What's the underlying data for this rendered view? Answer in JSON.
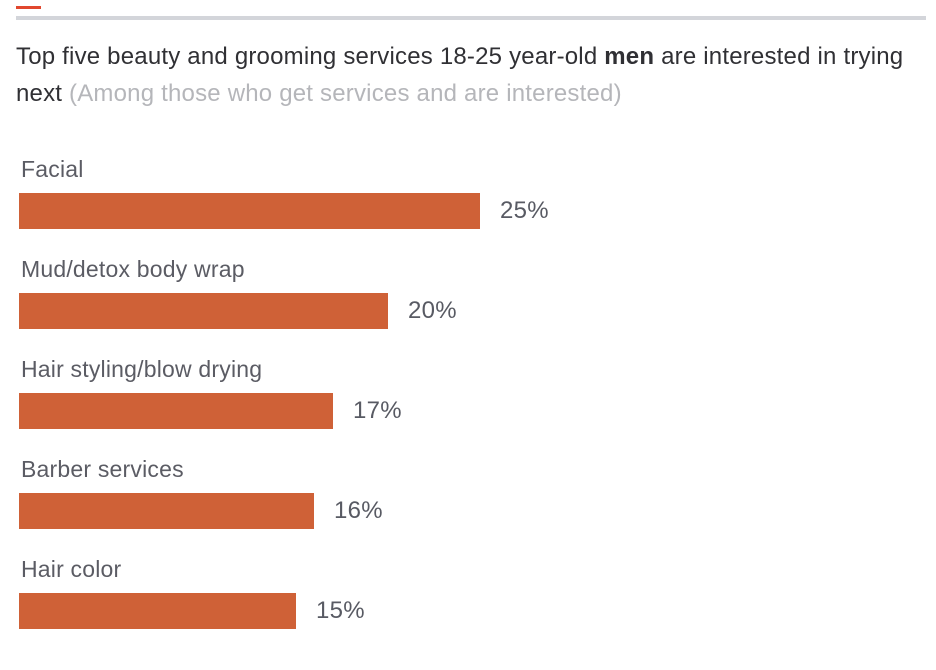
{
  "page": {
    "accent_dash_color": "#e1472e",
    "divider_color": "#d3d5da"
  },
  "title": {
    "part1": "Top five beauty and grooming services 18-25 year-old ",
    "part2_bold": "men",
    "part3": " are interested in trying next ",
    "subtitle": "(Among those who get services and are interested)"
  },
  "chart_data": {
    "type": "bar",
    "orientation": "horizontal",
    "title": "Top five beauty and grooming services 18-25 year-old men are interested in trying next",
    "subtitle": "(Among those who get services and are interested)",
    "bar_color": "#cf6137",
    "label_color": "#5b5c64",
    "xlim": [
      0,
      25
    ],
    "grid": false,
    "legend": false,
    "categories": [
      "Facial",
      "Mud/detox body wrap",
      "Hair styling/blow drying",
      "Barber services",
      "Hair color"
    ],
    "values": [
      25,
      20,
      17,
      16,
      15
    ],
    "value_labels": [
      "25%",
      "20%",
      "17%",
      "16%",
      "15%"
    ],
    "items": [
      {
        "label": "Facial",
        "value": 25,
        "value_label": "25%"
      },
      {
        "label": "Mud/detox body wrap",
        "value": 20,
        "value_label": "20%"
      },
      {
        "label": "Hair styling/blow drying",
        "value": 17,
        "value_label": "17%"
      },
      {
        "label": "Barber services",
        "value": 16,
        "value_label": "16%"
      },
      {
        "label": "Hair color",
        "value": 15,
        "value_label": "15%"
      }
    ]
  }
}
